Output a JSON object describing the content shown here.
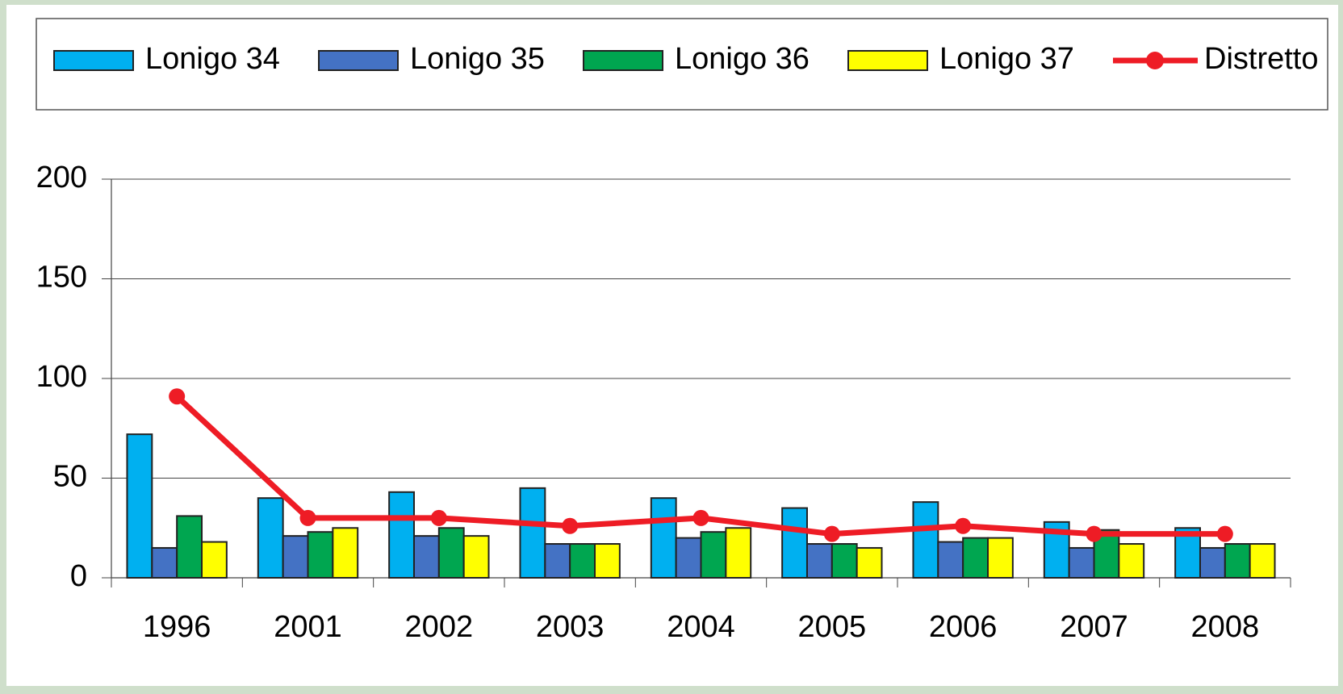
{
  "chart_data": {
    "type": "bar",
    "categories": [
      "1996",
      "2001",
      "2002",
      "2003",
      "2004",
      "2005",
      "2006",
      "2007",
      "2008"
    ],
    "series": [
      {
        "name": "Lonigo 34",
        "color": "#00b0f0",
        "values": [
          72,
          40,
          43,
          45,
          40,
          35,
          38,
          28,
          25
        ]
      },
      {
        "name": "Lonigo 35",
        "color": "#4472c4",
        "values": [
          15,
          21,
          21,
          17,
          20,
          17,
          18,
          15,
          15
        ]
      },
      {
        "name": "Lonigo 36",
        "color": "#00a650",
        "values": [
          31,
          23,
          25,
          17,
          23,
          17,
          20,
          24,
          17
        ]
      },
      {
        "name": "Lonigo 37",
        "color": "#ffff00",
        "values": [
          18,
          25,
          21,
          17,
          25,
          15,
          20,
          17,
          17
        ]
      },
      {
        "name": "Distretto",
        "color": "#ee1c25",
        "type": "line",
        "values": [
          91,
          30,
          30,
          26,
          30,
          22,
          26,
          22,
          22
        ]
      }
    ],
    "ylim": [
      0,
      200
    ],
    "yticks": [
      0,
      50,
      100,
      150,
      200
    ],
    "grid": true,
    "legend": "top"
  }
}
